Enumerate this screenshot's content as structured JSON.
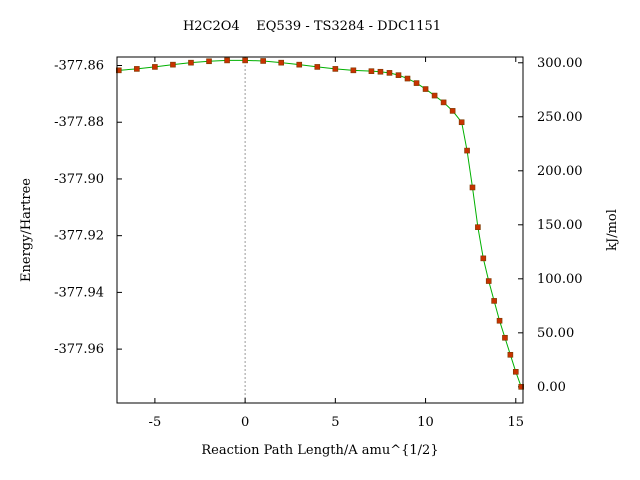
{
  "chart_data": {
    "type": "line",
    "title": "H2C2O4    EQ539 - TS3284 - DDC1151",
    "xlabel": "Reaction Path Length/A amu^{1/2}",
    "ylabel": "Energy/Hartree",
    "y2label": "kJ/mol",
    "xlim": [
      -7.1,
      15.4
    ],
    "ylim": [
      -377.979,
      -377.857
    ],
    "y2_reference_hartree": -377.9733,
    "x_ticks": [
      -5,
      0,
      5,
      10,
      15
    ],
    "x_tick_labels": [
      "-5",
      "0",
      "5",
      "10",
      "15"
    ],
    "y_ticks": [
      -377.86,
      -377.88,
      -377.9,
      -377.92,
      -377.94,
      -377.96
    ],
    "y_tick_labels": [
      "-377.86",
      "-377.88",
      "-377.90",
      "-377.92",
      "-377.94",
      "-377.96"
    ],
    "y2_ticks": [
      300,
      250,
      200,
      150,
      100,
      50,
      0
    ],
    "y2_tick_labels": [
      "300.00",
      "250.00",
      "200.00",
      "150.00",
      "100.00",
      "50.00",
      "0.00"
    ],
    "ts_marker_x": 0,
    "grid": false,
    "legend": "none",
    "colors": {
      "curve": "#00b000",
      "points": "#c83200",
      "ts_line": "#999999"
    },
    "series": [
      {
        "x": [
          -7.0,
          -6.0,
          -5.0,
          -4.0,
          -3.0,
          -2.0,
          -1.0,
          0.0,
          1.0,
          2.0,
          3.0,
          4.0,
          5.0,
          6.0,
          7.0,
          7.5,
          8.0,
          8.5,
          9.0,
          9.5,
          10.0,
          10.5,
          11.0,
          11.5,
          12.0,
          12.3,
          12.6,
          12.9,
          13.2,
          13.5,
          13.8,
          14.1,
          14.4,
          14.7,
          15.0,
          15.3
        ],
        "y": [
          -377.8617,
          -377.8612,
          -377.8605,
          -377.8597,
          -377.859,
          -377.8585,
          -377.8582,
          -377.8582,
          -377.8584,
          -377.859,
          -377.8597,
          -377.8605,
          -377.8612,
          -377.8617,
          -377.862,
          -377.8622,
          -377.8626,
          -377.8634,
          -377.8646,
          -377.8662,
          -377.8683,
          -377.8706,
          -377.873,
          -377.876,
          -377.88,
          -377.89,
          -377.903,
          -377.917,
          -377.928,
          -377.936,
          -377.943,
          -377.95,
          -377.956,
          -377.962,
          -377.968,
          -377.9733
        ]
      }
    ]
  }
}
